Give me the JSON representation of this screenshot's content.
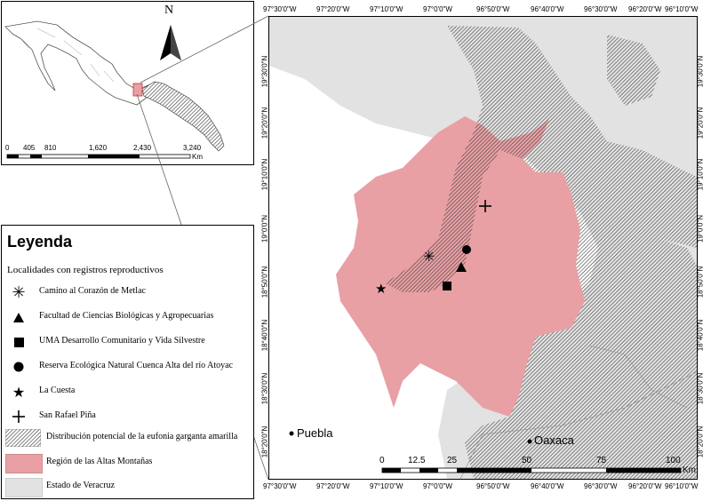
{
  "north": {
    "label": "N"
  },
  "inset_scale": {
    "labels": [
      "0",
      "405",
      "810",
      "1,620",
      "2,430",
      "3,240"
    ],
    "unit": "Km"
  },
  "legend": {
    "title": "Leyenda",
    "subtitle": "Localidades con registros reproductivos",
    "items": [
      {
        "symbol": "asterisk",
        "label": "Camino al Corazón de Metlac"
      },
      {
        "symbol": "triangle",
        "label": "Facultad de Ciencias Biológicas y Agropecuarias"
      },
      {
        "symbol": "square",
        "label": "UMA Desarrollo Comunitario y Vida Silvestre"
      },
      {
        "symbol": "circle",
        "label": "Reserva Ecológica Natural Cuenca Alta del río Atoyac"
      },
      {
        "symbol": "star",
        "label": "La Cuesta"
      },
      {
        "symbol": "plus",
        "label": "San Rafael Piña"
      },
      {
        "symbol": "hatched",
        "label": "Distribución potencial de la eufonia garganta amarilla"
      },
      {
        "symbol": "pink",
        "label": "Región de las Altas Montañas"
      },
      {
        "symbol": "gray",
        "label": "Estado de Veracruz"
      }
    ]
  },
  "map": {
    "lon_labels": [
      "97°30'0\"W",
      "97°20'0\"W",
      "97°10'0\"W",
      "97°0'0\"W",
      "96°50'0\"W",
      "96°40'0\"W",
      "96°30'0\"W",
      "96°20'0\"W",
      "96°10'0\"W"
    ],
    "lat_labels_left": [
      "19°30'0\"N",
      "19°20'0\"N",
      "19°10'0\"N",
      "19°0'0\"N",
      "18°50'0\"N",
      "18°40'0\"N",
      "18°30'0\"N",
      "18°20'0\"N"
    ],
    "lat_labels_right": [
      "19°30'0\"N",
      "19°20'0\"N",
      "19°10'0\"N",
      "19°0'0\"N",
      "18°50'0\"N",
      "18°40'0\"N",
      "18°30'0\"N",
      "18°20'0\"N"
    ],
    "cities": [
      {
        "name": "Puebla"
      },
      {
        "name": "Oaxaca"
      }
    ],
    "scale": {
      "labels": [
        "0",
        "12.5",
        "25",
        "50",
        "75",
        "100"
      ],
      "unit": "Km"
    }
  },
  "colors": {
    "pink": "#e8a0a4",
    "gray": "#e2e2e2",
    "hatch": "#333333"
  }
}
